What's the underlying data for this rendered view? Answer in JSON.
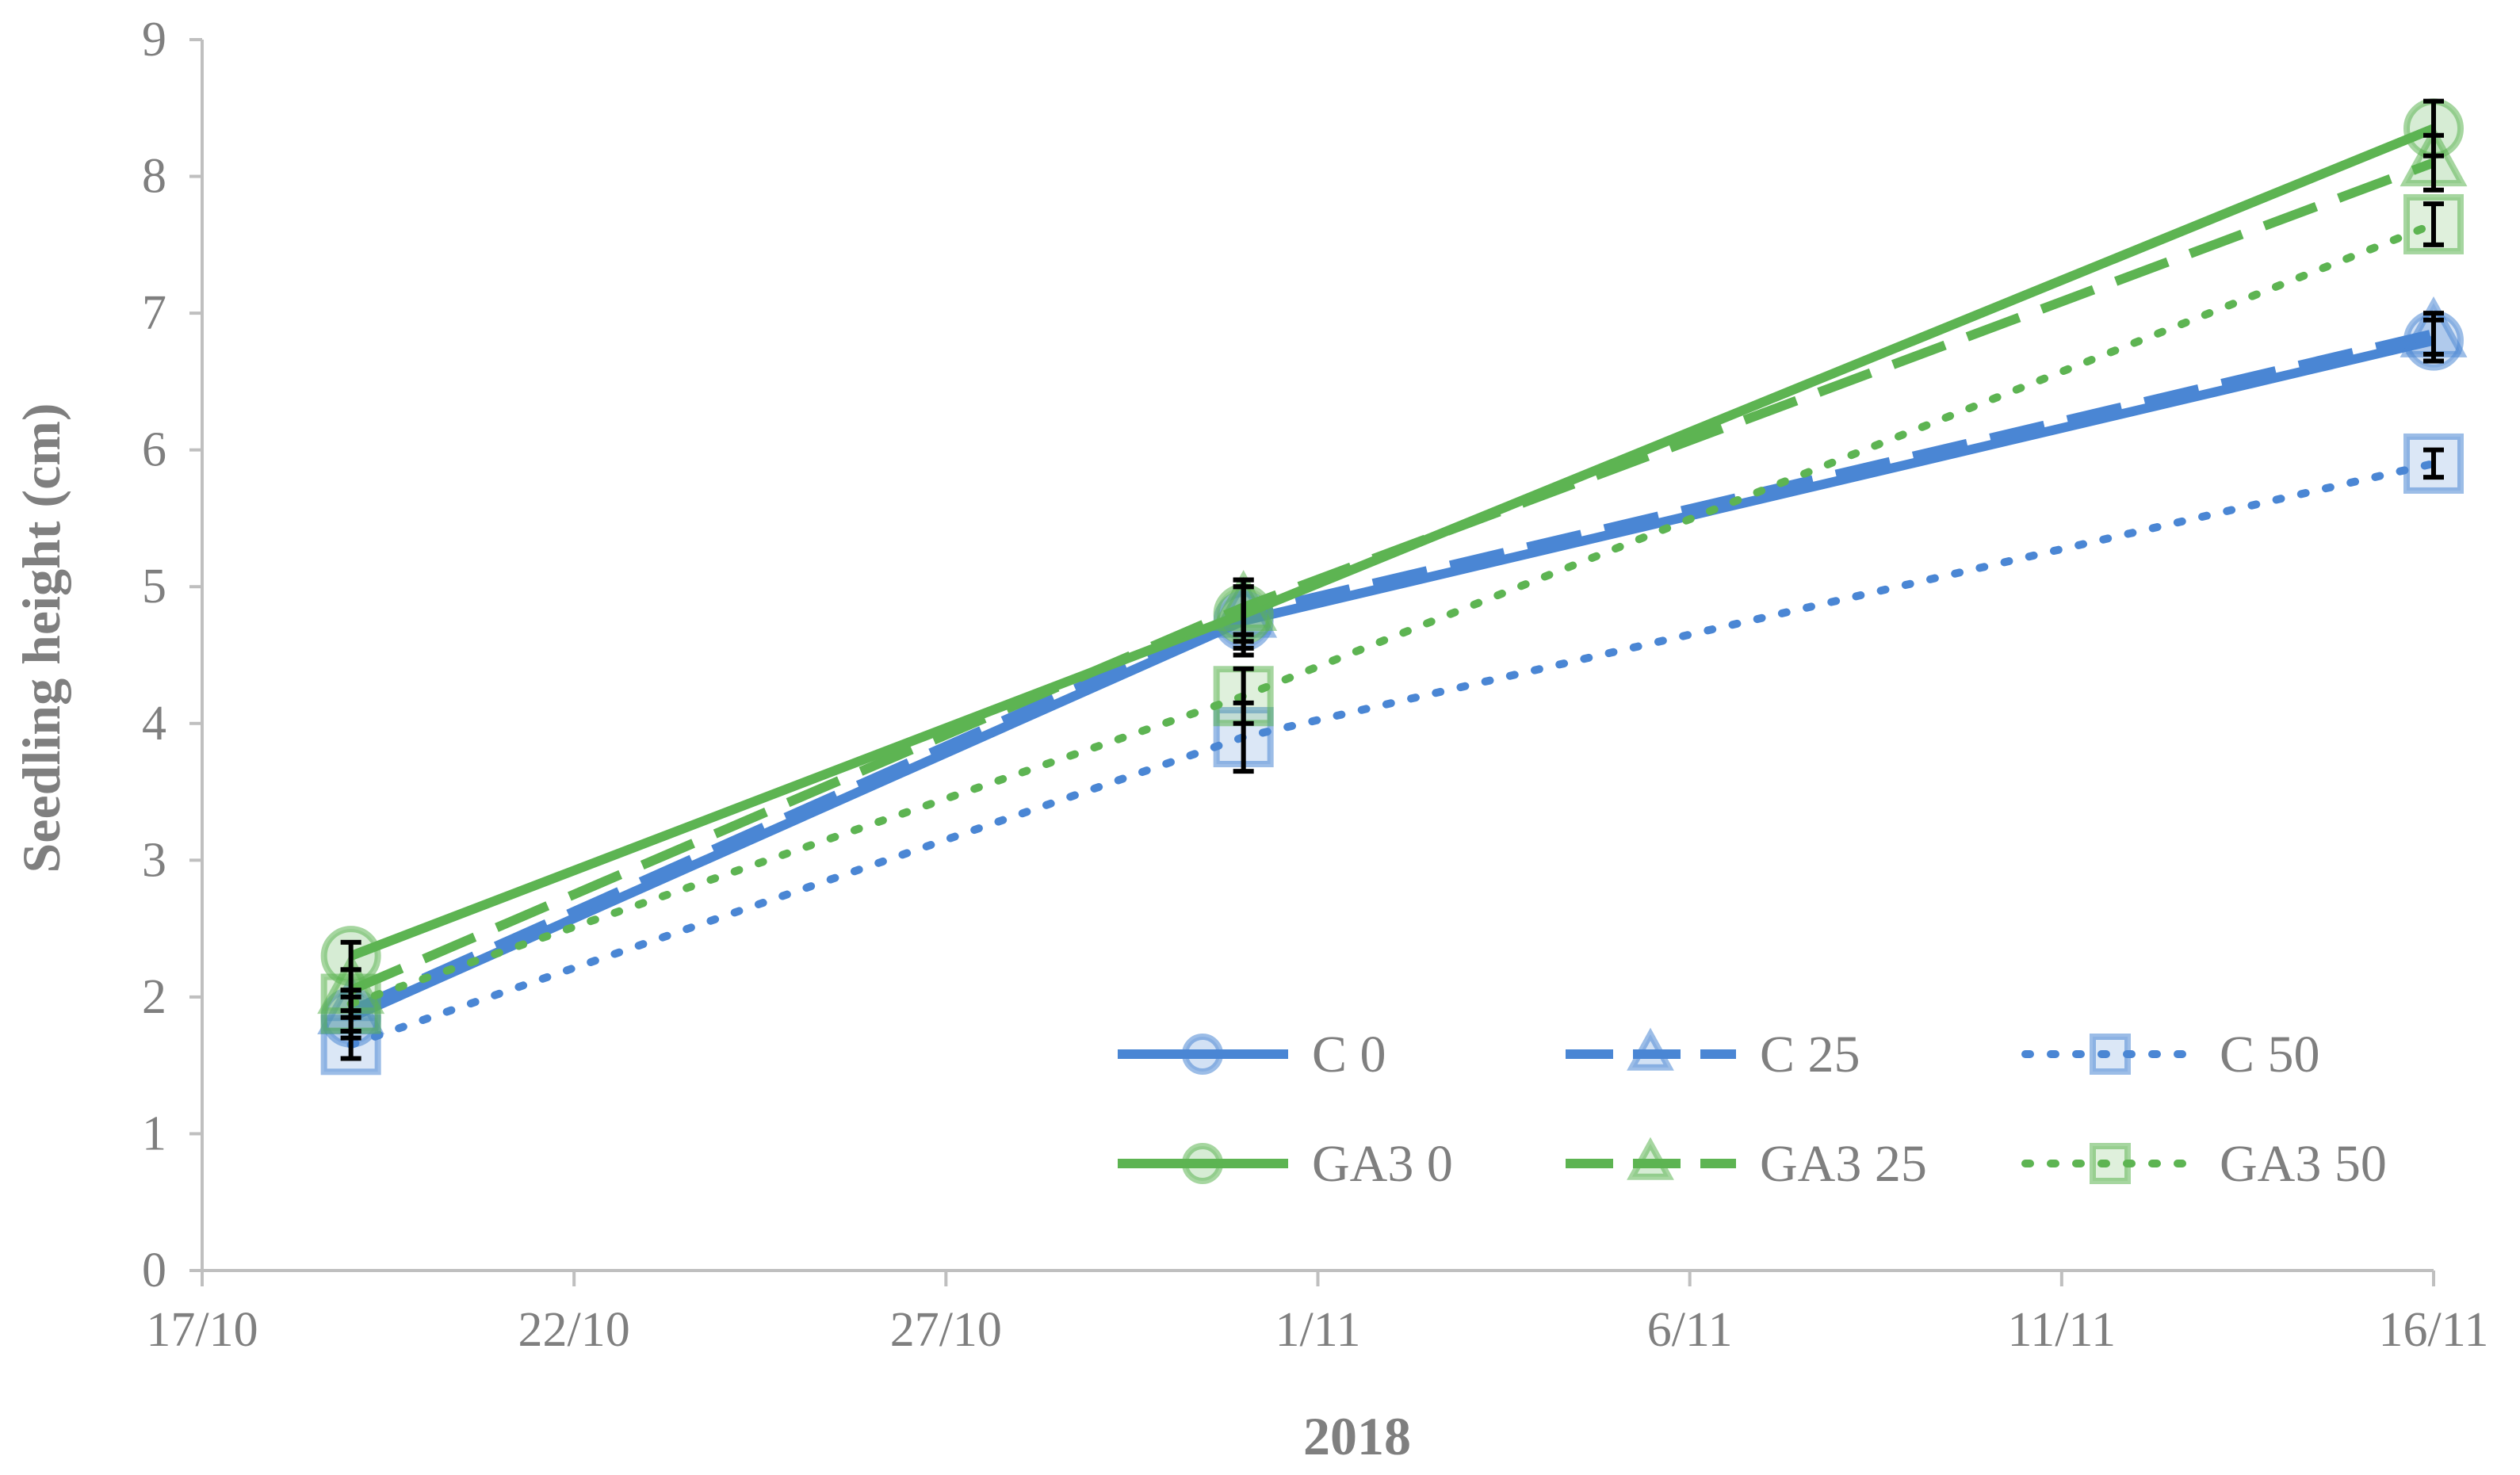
{
  "chart_data": {
    "type": "line",
    "xlabel": "2018",
    "ylabel": "Seedling height (cm)",
    "ylim": [
      0,
      9
    ],
    "yticks": [
      0,
      1,
      2,
      3,
      4,
      5,
      6,
      7,
      8,
      9
    ],
    "xlim": [
      "17/10",
      "16/11"
    ],
    "xtick_labels": [
      "17/10",
      "22/10",
      "27/10",
      "1/11",
      "6/11",
      "11/11",
      "16/11"
    ],
    "x": [
      "19/10",
      "31/10",
      "16/11"
    ],
    "grid": false,
    "legend_position": "bottom-right",
    "series": [
      {
        "name": "C 0",
        "values": [
          1.85,
          4.75,
          6.8
        ],
        "error": [
          0.15,
          0.25,
          0.15
        ],
        "color": "#4a86d4",
        "line": "solid",
        "marker": "circle"
      },
      {
        "name": "C 25",
        "values": [
          1.9,
          4.8,
          6.85
        ],
        "error": [
          0.15,
          0.25,
          0.15
        ],
        "color": "#4a86d4",
        "line": "dashed",
        "marker": "triangle"
      },
      {
        "name": "C 50",
        "values": [
          1.65,
          3.9,
          5.9
        ],
        "error": [
          0.1,
          0.25,
          0.1
        ],
        "color": "#4a86d4",
        "line": "dotted",
        "marker": "square"
      },
      {
        "name": "GA3 0",
        "values": [
          2.3,
          4.8,
          8.35
        ],
        "error": [
          0.1,
          0.2,
          0.2
        ],
        "color": "#5db452",
        "line": "solid",
        "marker": "circle"
      },
      {
        "name": "GA3 25",
        "values": [
          2.05,
          4.85,
          8.1
        ],
        "error": [
          0.15,
          0.2,
          0.2
        ],
        "color": "#5db452",
        "line": "dashed",
        "marker": "triangle"
      },
      {
        "name": "GA3 50",
        "values": [
          1.95,
          4.2,
          7.65
        ],
        "error": [
          0.1,
          0.2,
          0.15
        ],
        "color": "#5db452",
        "line": "dotted",
        "marker": "square"
      }
    ]
  }
}
